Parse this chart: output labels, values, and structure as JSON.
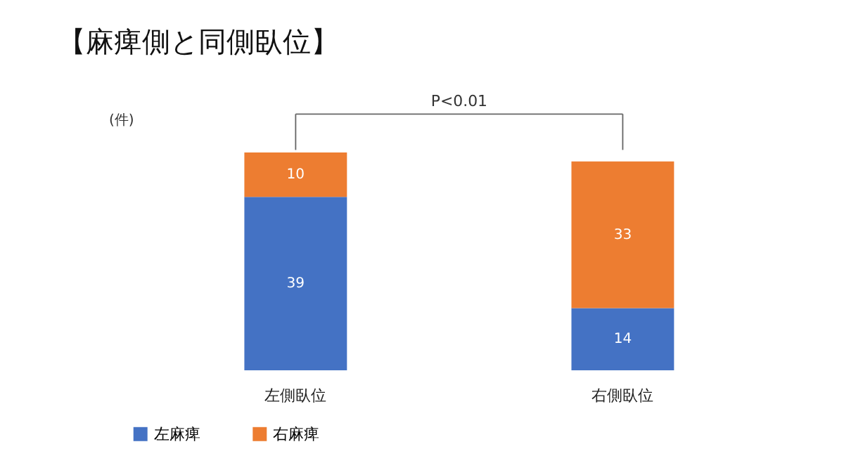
{
  "chart_data": {
    "type": "bar",
    "title": "【麻痺側と同側臥位】",
    "ylabel": "(件)",
    "stacked": true,
    "categories": [
      "左側臥位",
      "右側臥位"
    ],
    "series": [
      {
        "name": "左麻痺",
        "color": "#4472c4",
        "values": [
          39,
          14
        ]
      },
      {
        "name": "右麻痺",
        "color": "#ed7d31",
        "values": [
          10,
          33
        ]
      }
    ],
    "data_labels": true,
    "tick_labels": "x",
    "legend": "bottom",
    "annotations": [
      "P<0.01"
    ]
  }
}
